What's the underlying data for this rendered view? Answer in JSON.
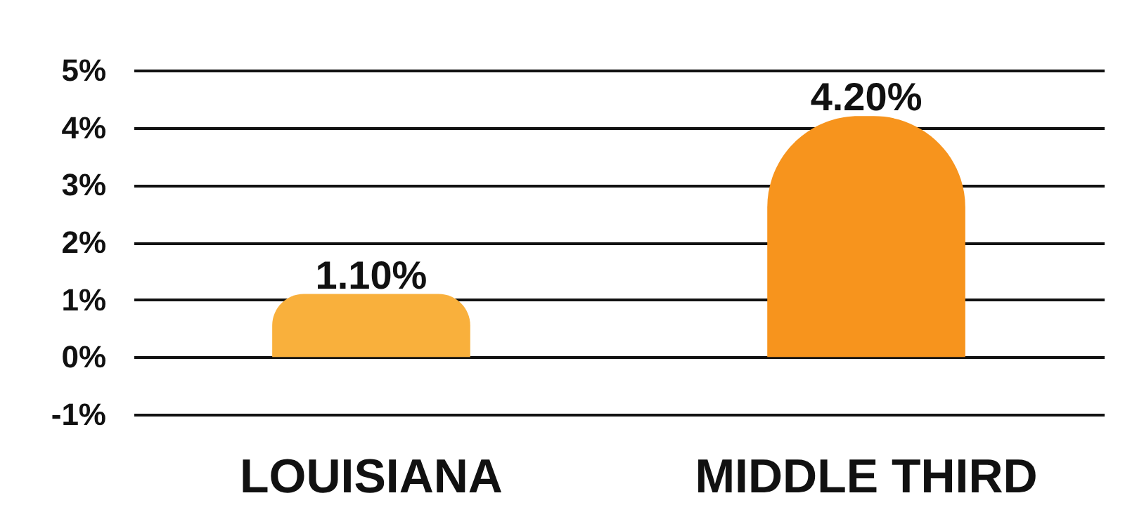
{
  "chart_data": {
    "type": "bar",
    "categories": [
      "LOUISIANA",
      "MIDDLE THIRD"
    ],
    "values": [
      1.1,
      4.2
    ],
    "colors": [
      "#f9b03c",
      "#f7941d"
    ],
    "value_labels": [
      "1.10%",
      "4.20%"
    ],
    "ylim": [
      -1,
      5
    ],
    "yticks": [
      {
        "value": -1,
        "label": "-1%"
      },
      {
        "value": 0,
        "label": "0%"
      },
      {
        "value": 1,
        "label": "1%"
      },
      {
        "value": 2,
        "label": "2%"
      },
      {
        "value": 3,
        "label": "3%"
      },
      {
        "value": 4,
        "label": "4%"
      },
      {
        "value": 5,
        "label": "5%"
      }
    ],
    "grid": true
  }
}
